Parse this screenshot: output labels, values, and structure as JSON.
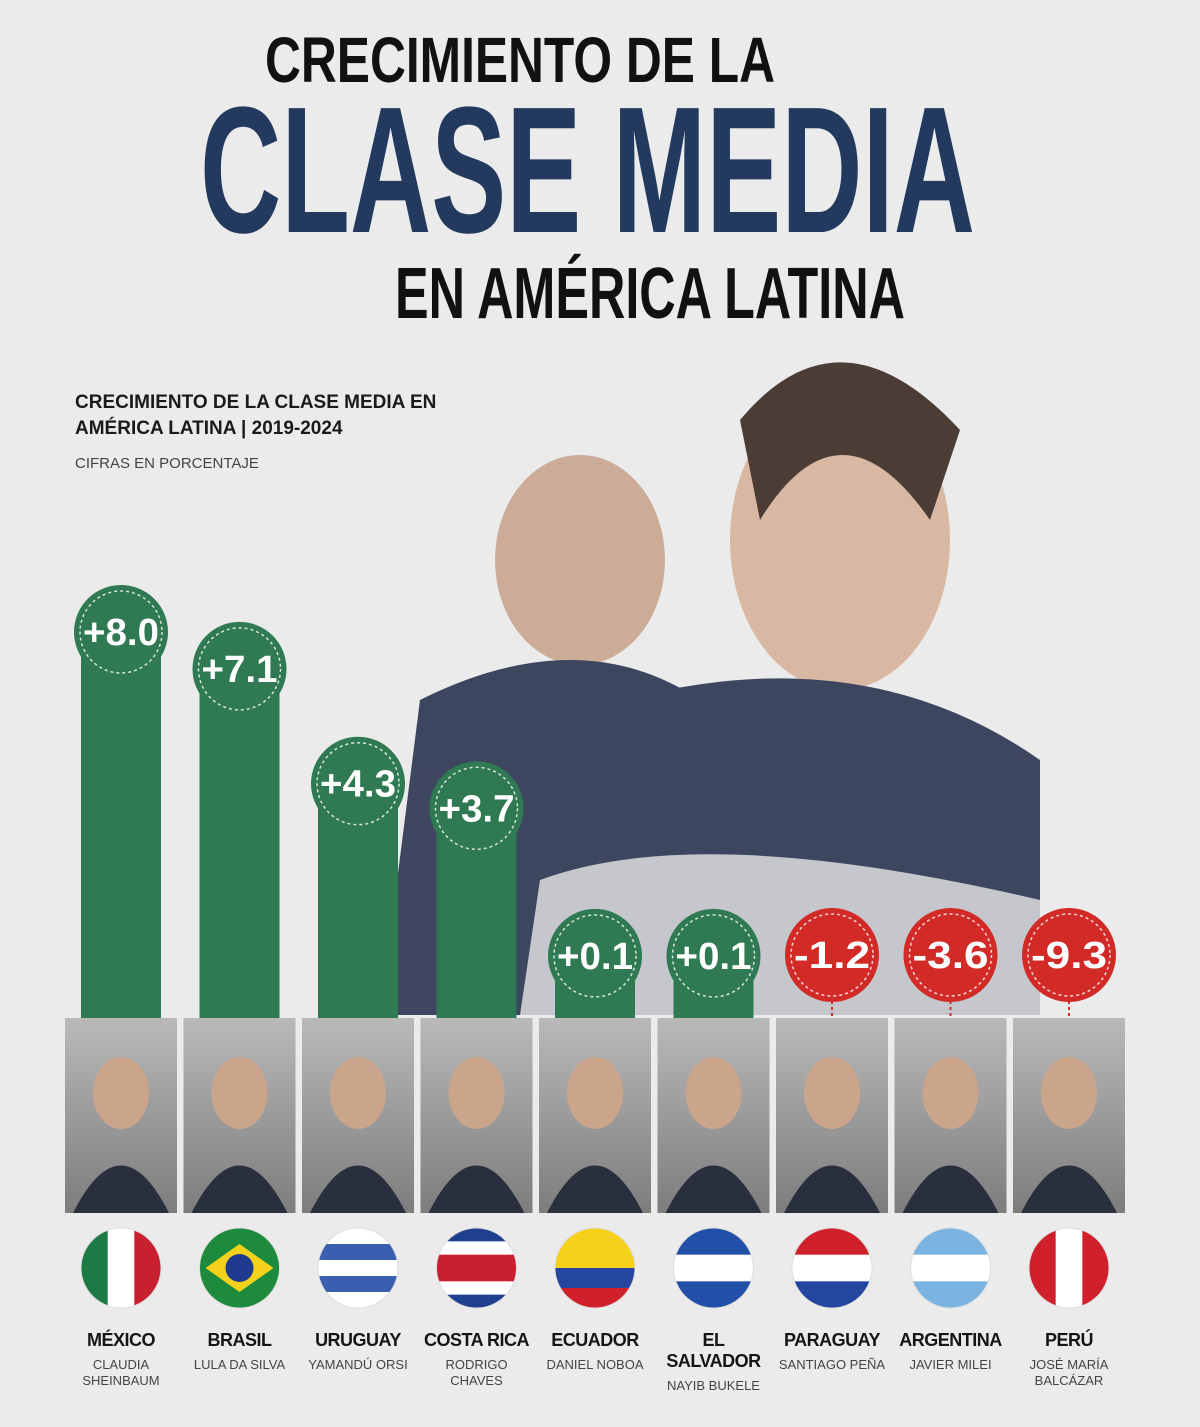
{
  "header": {
    "title_top": "CRECIMIENTO DE LA",
    "title_main": "CLASE MEDIA",
    "title_bottom": "EN AMÉRICA LATINA"
  },
  "chart_data": {
    "type": "bar",
    "title": "CRECIMIENTO DE LA CLASE MEDIA EN AMÉRICA LATINA | 2019-2024",
    "subtitle": "CIFRAS EN PORCENTAJE",
    "categories": [
      "MÉXICO",
      "BRASIL",
      "URUGUAY",
      "COSTA RICA",
      "ECUADOR",
      "EL SALVADOR",
      "PARAGUAY",
      "ARGENTINA",
      "PERÚ"
    ],
    "leaders": [
      "CLAUDIA SHEINBAUM",
      "LULA DA SILVA",
      "YAMANDÚ ORSI",
      "RODRIGO CHAVES",
      "DANIEL NOBOA",
      "NAYIB BUKELE",
      "SANTIAGO PEÑA",
      "JAVIER MILEI",
      "JOSÉ MARÍA BALCÁZAR"
    ],
    "values": [
      8.0,
      7.1,
      4.3,
      3.7,
      0.1,
      0.1,
      -1.2,
      -3.6,
      -9.3
    ],
    "value_labels": [
      "+8.0",
      "+7.1",
      "+4.3",
      "+3.7",
      "+0.1",
      "+0.1",
      "-1.2",
      "-3.6",
      "-9.3"
    ],
    "colors": [
      "#2f7a52",
      "#2f7a52",
      "#2f7a52",
      "#2f7a52",
      "#2f7a52",
      "#2f7a52",
      "#d22b27",
      "#d22b27",
      "#d22b27"
    ]
  }
}
